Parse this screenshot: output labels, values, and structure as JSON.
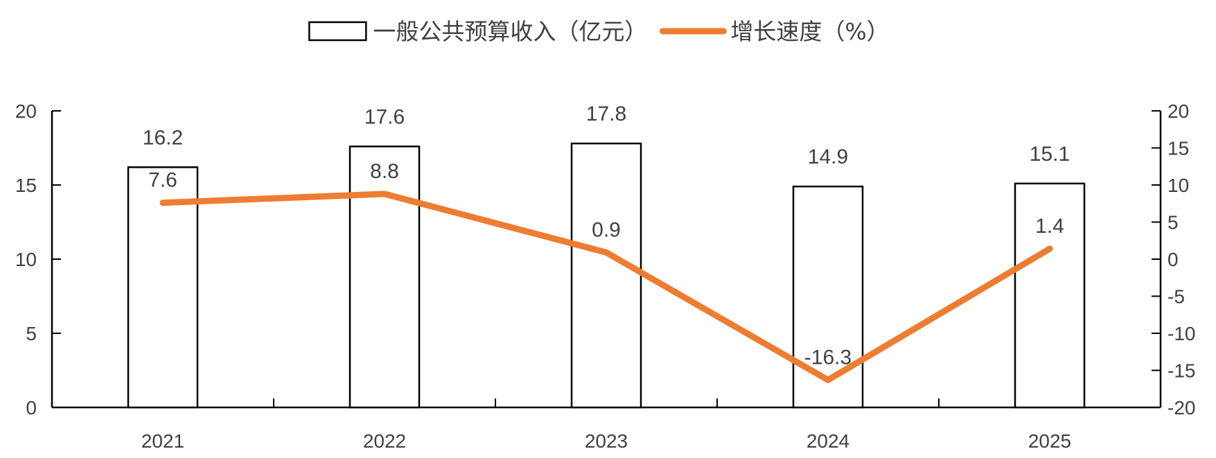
{
  "chart_data": {
    "type": "bar",
    "categories": [
      "2021",
      "2022",
      "2023",
      "2024",
      "2025"
    ],
    "series": [
      {
        "name": "一般公共预算收入（亿元）",
        "type": "bar",
        "axis": "left",
        "values": [
          16.2,
          17.6,
          17.8,
          14.9,
          15.1
        ],
        "labels": [
          "16.2",
          "17.6",
          "17.8",
          "14.9",
          "15.1"
        ],
        "fill": "#ffffff",
        "stroke": "#000000"
      },
      {
        "name": "增长速度（%）",
        "type": "line",
        "axis": "right",
        "values": [
          7.6,
          8.8,
          0.9,
          -16.3,
          1.4
        ],
        "labels": [
          "7.6",
          "8.8",
          "0.9",
          "-16.3",
          "1.4"
        ],
        "color": "#ED7D31"
      }
    ],
    "y_left": {
      "range": [
        0,
        20
      ],
      "ticks": [
        "0",
        "5",
        "10",
        "15",
        "20"
      ]
    },
    "y_right": {
      "range": [
        -20,
        20
      ],
      "ticks": [
        "-20",
        "-15",
        "-10",
        "-5",
        "0",
        "5",
        "10",
        "15",
        "20"
      ]
    },
    "legend": {
      "position": "top-center"
    },
    "grid": false
  }
}
